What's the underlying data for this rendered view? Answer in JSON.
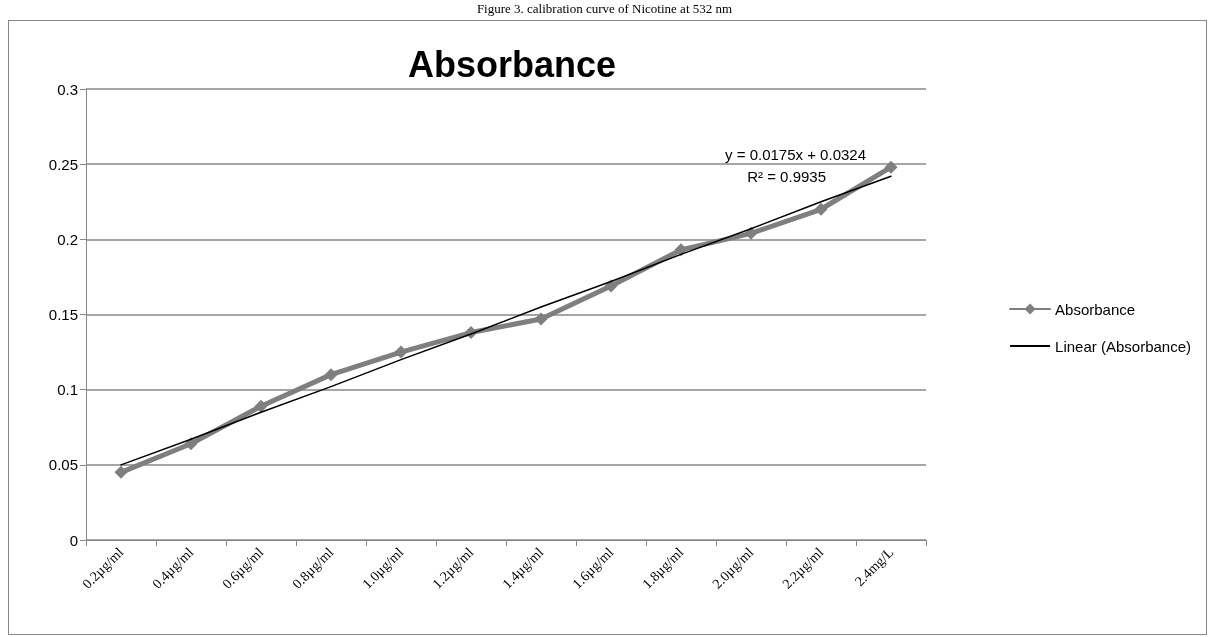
{
  "chart_data": {
    "type": "line",
    "title": "Absorbance",
    "categories": [
      "0.2µg/ml",
      "0.4µg/ml",
      "0.6µg/ml",
      "0.8µg/ml",
      "1.0µg/ml",
      "1.2µg/ml",
      "1.4µg/ml",
      "1.6µg/ml",
      "1.8µg/ml",
      "2.0µg/ml",
      "2.2µg/ml",
      "2.4mg/L"
    ],
    "series": [
      {
        "name": "Absorbance",
        "color": "#7f7f7f",
        "marker": "diamond",
        "values": [
          0.045,
          0.064,
          0.089,
          0.11,
          0.125,
          0.138,
          0.147,
          0.169,
          0.193,
          0.204,
          0.22,
          0.248
        ]
      },
      {
        "name": "Linear (Absorbance)",
        "color": "#000000",
        "marker": "none",
        "values": [
          0.05,
          0.067,
          0.085,
          0.102,
          0.12,
          0.137,
          0.155,
          0.172,
          0.19,
          0.207,
          0.225,
          0.242
        ]
      }
    ],
    "ylim": [
      0,
      0.3
    ],
    "yticks": [
      0,
      0.05,
      0.1,
      0.15,
      0.2,
      0.25,
      0.3
    ],
    "grid": "y",
    "legend": "right",
    "annotations": [
      "Figure 3. calibration curve of Nicotine at 532 nm",
      "y = 0.0175x + 0.0324",
      "R² = 0.9935"
    ]
  }
}
